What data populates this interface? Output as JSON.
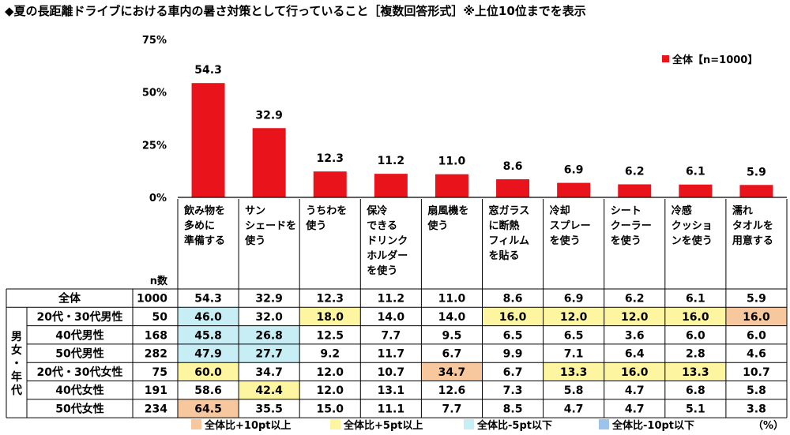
{
  "title": "◆夏の長距離ドライブにおける車内の暑さ対策として行っていること［複数回答形式］※上位10位までを表示",
  "colors": {
    "bar": "#e8131b",
    "plus10": "#f7c89e",
    "plus5": "#fdf5a0",
    "minus5": "#c8eef5",
    "minus10": "#9cc4ea"
  },
  "chart_data": {
    "type": "bar",
    "categories": [
      [
        "飲み物を",
        "多めに",
        "準備する"
      ],
      [
        "サン",
        "シェードを",
        "使う"
      ],
      [
        "うちわを",
        "使う"
      ],
      [
        "保冷",
        "できる",
        "ドリンク",
        "ホルダー",
        "を使う"
      ],
      [
        "扇風機を",
        "使う"
      ],
      [
        "窓ガラス",
        "に断熱",
        "フィルム",
        "を貼る"
      ],
      [
        "冷却",
        "スプレー",
        "を使う"
      ],
      [
        "シート",
        "クーラー",
        "を使う"
      ],
      [
        "冷感",
        "クッショ",
        "ンを使う"
      ],
      [
        "濡れ",
        "タオルを",
        "用意する"
      ]
    ],
    "series": [
      {
        "name": "全体【n=1000】",
        "values": [
          54.3,
          32.9,
          12.3,
          11.2,
          11.0,
          8.6,
          6.9,
          6.2,
          6.1,
          5.9
        ]
      }
    ],
    "yticks": [
      "0%",
      "25%",
      "50%",
      "75%"
    ],
    "ylim": [
      0,
      75
    ],
    "legend": "全体【n=1000】",
    "legend_position": "top-right"
  },
  "table": {
    "n_header": "n数",
    "side_label": [
      "男",
      "女",
      "・",
      "年",
      "代"
    ],
    "unit": "（%）",
    "rows": [
      {
        "label": "全体",
        "n": "1000",
        "values": [
          "54.3",
          "32.9",
          "12.3",
          "11.2",
          "11.0",
          "8.6",
          "6.9",
          "6.2",
          "6.1",
          "5.9"
        ],
        "hl": [
          "",
          "",
          "",
          "",
          "",
          "",
          "",
          "",
          "",
          ""
        ]
      },
      {
        "label": "20代・30代男性",
        "n": "50",
        "values": [
          "46.0",
          "32.0",
          "18.0",
          "14.0",
          "14.0",
          "16.0",
          "12.0",
          "12.0",
          "16.0",
          "16.0"
        ],
        "hl": [
          "minus5",
          "",
          "plus5",
          "",
          "",
          "plus5",
          "plus5",
          "plus5",
          "plus5",
          "plus10"
        ]
      },
      {
        "label": "40代男性",
        "n": "168",
        "values": [
          "45.8",
          "26.8",
          "12.5",
          "7.7",
          "9.5",
          "6.5",
          "6.5",
          "3.6",
          "6.0",
          "6.0"
        ],
        "hl": [
          "minus5",
          "minus5",
          "",
          "",
          "",
          "",
          "",
          "",
          "",
          ""
        ]
      },
      {
        "label": "50代男性",
        "n": "282",
        "values": [
          "47.9",
          "27.7",
          "9.2",
          "11.7",
          "6.7",
          "9.9",
          "7.1",
          "6.4",
          "2.8",
          "4.6"
        ],
        "hl": [
          "minus5",
          "minus5",
          "",
          "",
          "",
          "",
          "",
          "",
          "",
          ""
        ]
      },
      {
        "label": "20代・30代女性",
        "n": "75",
        "values": [
          "60.0",
          "34.7",
          "12.0",
          "10.7",
          "34.7",
          "6.7",
          "13.3",
          "16.0",
          "13.3",
          "10.7"
        ],
        "hl": [
          "plus5",
          "",
          "",
          "",
          "plus10",
          "",
          "plus5",
          "plus5",
          "plus5",
          ""
        ]
      },
      {
        "label": "40代女性",
        "n": "191",
        "values": [
          "58.6",
          "42.4",
          "12.0",
          "13.1",
          "12.6",
          "7.3",
          "5.8",
          "4.7",
          "6.8",
          "5.8"
        ],
        "hl": [
          "",
          "plus5",
          "",
          "",
          "",
          "",
          "",
          "",
          "",
          ""
        ]
      },
      {
        "label": "50代女性",
        "n": "234",
        "values": [
          "64.5",
          "35.5",
          "15.0",
          "11.1",
          "7.7",
          "8.5",
          "4.7",
          "4.7",
          "5.1",
          "3.8"
        ],
        "hl": [
          "plus10",
          "",
          "",
          "",
          "",
          "",
          "",
          "",
          "",
          ""
        ]
      }
    ]
  },
  "table_legend": [
    {
      "key": "plus10",
      "label": "全体比+10pt以上"
    },
    {
      "key": "plus5",
      "label": "全体比+5pt以上"
    },
    {
      "key": "minus5",
      "label": "全体比-5pt以下"
    },
    {
      "key": "minus10",
      "label": "全体比-10pt以下"
    }
  ]
}
